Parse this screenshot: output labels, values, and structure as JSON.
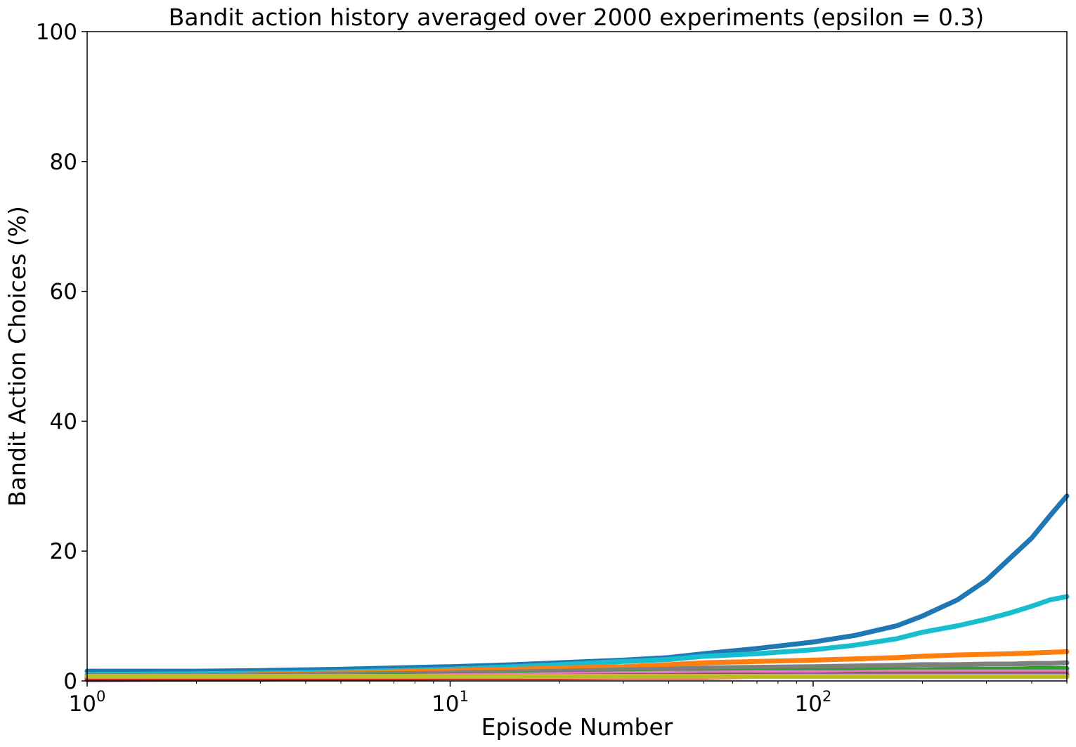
{
  "chart_data": {
    "type": "line",
    "title": "Bandit action history averaged over 2000 experiments (epsilon = 0.3)",
    "xlabel": "Episode Number",
    "ylabel": "Bandit Action Choices (%)",
    "xscale": "log",
    "xlim": [
      1,
      500
    ],
    "ylim": [
      0,
      100
    ],
    "grid": false,
    "legend": "none",
    "x_ticks": [
      {
        "value": 1,
        "base": "10",
        "exp": "0"
      },
      {
        "value": 10,
        "base": "10",
        "exp": "1"
      },
      {
        "value": 100,
        "base": "10",
        "exp": "2"
      }
    ],
    "y_ticks": [
      0,
      20,
      40,
      60,
      80,
      100
    ],
    "x": [
      1,
      2,
      3,
      5,
      7,
      10,
      15,
      20,
      30,
      40,
      50,
      70,
      100,
      130,
      170,
      200,
      250,
      300,
      350,
      400,
      450,
      500
    ],
    "series": [
      {
        "color": "#1f77b4",
        "values": [
          1.5,
          1.5,
          1.6,
          1.8,
          2.0,
          2.2,
          2.5,
          2.8,
          3.2,
          3.6,
          4.2,
          5.0,
          6.0,
          7.0,
          8.5,
          10.0,
          12.5,
          15.5,
          19.0,
          22.0,
          25.5,
          28.5
        ]
      },
      {
        "color": "#17becf",
        "values": [
          1.0,
          1.1,
          1.2,
          1.4,
          1.6,
          1.8,
          2.2,
          2.5,
          3.0,
          3.3,
          3.8,
          4.2,
          4.8,
          5.5,
          6.5,
          7.5,
          8.5,
          9.5,
          10.5,
          11.5,
          12.5,
          13.0
        ]
      },
      {
        "color": "#ff7f0e",
        "values": [
          0.6,
          0.8,
          1.0,
          1.2,
          1.4,
          1.6,
          1.8,
          2.0,
          2.2,
          2.5,
          2.8,
          3.0,
          3.2,
          3.4,
          3.6,
          3.8,
          4.0,
          4.1,
          4.2,
          4.3,
          4.4,
          4.5
        ]
      },
      {
        "color": "#7f7f7f",
        "values": [
          0.8,
          0.8,
          0.9,
          1.0,
          1.1,
          1.2,
          1.4,
          1.5,
          1.7,
          1.8,
          2.0,
          2.1,
          2.2,
          2.3,
          2.4,
          2.5,
          2.5,
          2.6,
          2.6,
          2.7,
          2.7,
          2.8
        ]
      },
      {
        "color": "#2ca02c",
        "values": [
          0.5,
          0.5,
          0.6,
          0.7,
          0.8,
          0.9,
          1.0,
          1.1,
          1.2,
          1.3,
          1.4,
          1.5,
          1.6,
          1.6,
          1.7,
          1.7,
          1.8,
          1.8,
          1.8,
          1.9,
          1.9,
          1.9
        ]
      },
      {
        "color": "#e377c2",
        "values": [
          0.3,
          0.4,
          0.5,
          0.6,
          0.7,
          0.8,
          0.9,
          1.0,
          1.1,
          1.2,
          1.2,
          1.3,
          1.3,
          1.3,
          1.4,
          1.4,
          1.4,
          1.4,
          1.4,
          1.4,
          1.4,
          1.4
        ]
      },
      {
        "color": "#8c564b",
        "values": [
          0.4,
          0.4,
          0.5,
          0.5,
          0.6,
          0.6,
          0.7,
          0.7,
          0.8,
          0.8,
          0.9,
          0.9,
          0.9,
          1.0,
          1.0,
          1.0,
          1.0,
          1.0,
          1.0,
          1.0,
          1.0,
          1.0
        ]
      },
      {
        "color": "#9467bd",
        "values": [
          0.2,
          0.3,
          0.3,
          0.4,
          0.4,
          0.5,
          0.5,
          0.6,
          0.6,
          0.7,
          0.7,
          0.7,
          0.8,
          0.8,
          0.8,
          0.8,
          0.8,
          0.8,
          0.8,
          0.8,
          0.8,
          0.8
        ]
      },
      {
        "color": "#d62728",
        "values": [
          0.3,
          0.3,
          0.3,
          0.4,
          0.4,
          0.5,
          0.5,
          0.5,
          0.6,
          0.6,
          0.6,
          0.7,
          0.7,
          0.7,
          0.7,
          0.7,
          0.7,
          0.7,
          0.7,
          0.7,
          0.7,
          0.7
        ]
      },
      {
        "color": "#bcbd22",
        "values": [
          0.7,
          0.7,
          0.7,
          0.7,
          0.7,
          0.7,
          0.7,
          0.7,
          0.7,
          0.7,
          0.7,
          0.7,
          0.7,
          0.7,
          0.7,
          0.7,
          0.7,
          0.7,
          0.7,
          0.7,
          0.7,
          0.7
        ]
      }
    ]
  }
}
